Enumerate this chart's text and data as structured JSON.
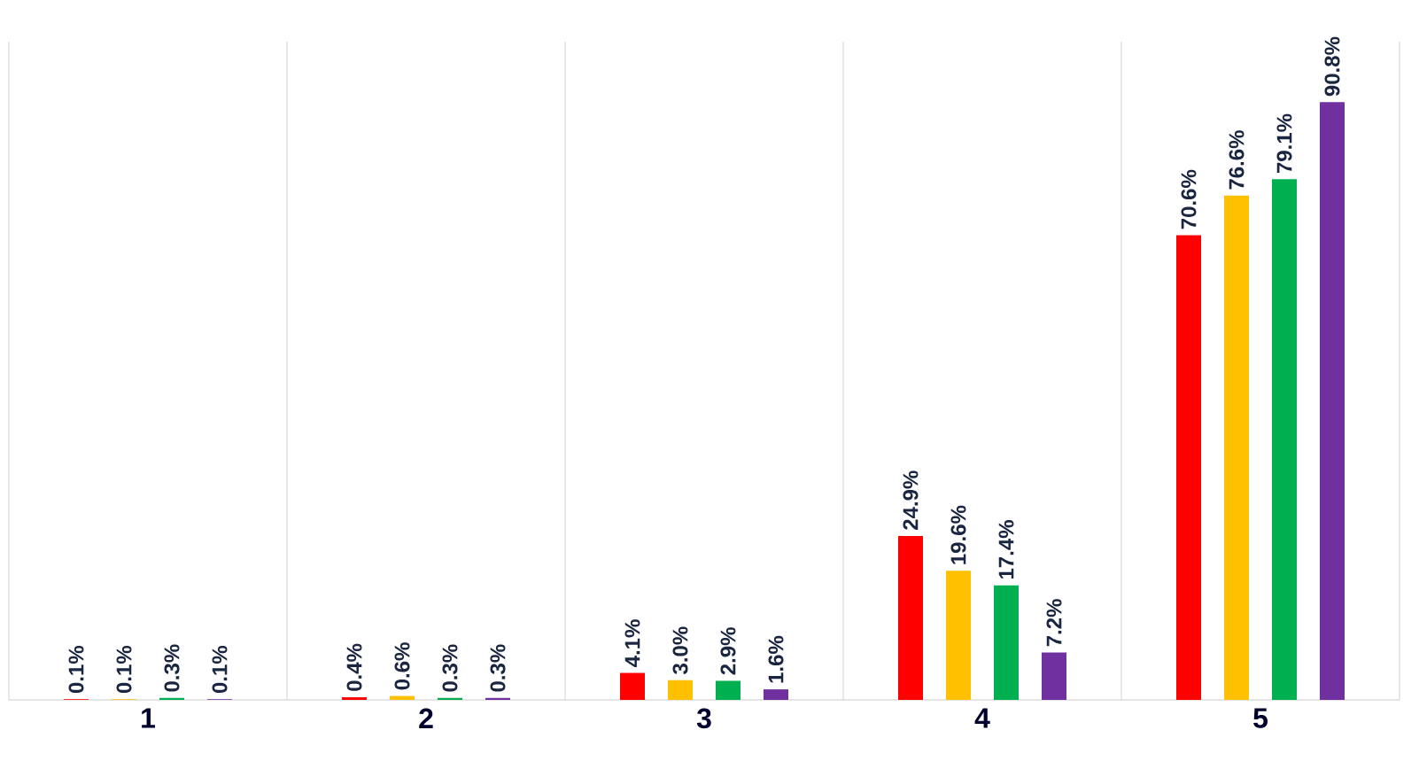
{
  "chart_data": {
    "type": "bar",
    "categories": [
      "1",
      "2",
      "3",
      "4",
      "5"
    ],
    "ylim": [
      0,
      100
    ],
    "tick_labels": "x",
    "grid": "x",
    "series": [
      {
        "color": "#ff0000",
        "values": [
          0.1,
          0.4,
          4.1,
          24.9,
          70.6
        ],
        "value_labels": [
          "0.1%",
          "0.4%",
          "4.1%",
          "24.9%",
          "70.6%"
        ]
      },
      {
        "color": "#ffc000",
        "values": [
          0.1,
          0.6,
          3.0,
          19.6,
          76.6
        ],
        "value_labels": [
          "0.1%",
          "0.6%",
          "3.0%",
          "19.6%",
          "76.6%"
        ]
      },
      {
        "color": "#00b050",
        "values": [
          0.3,
          0.3,
          2.9,
          17.4,
          79.1
        ],
        "value_labels": [
          "0.3%",
          "0.3%",
          "2.9%",
          "17.4%",
          "79.1%"
        ]
      },
      {
        "color": "#7030a0",
        "values": [
          0.1,
          0.3,
          1.6,
          7.2,
          90.8
        ],
        "value_labels": [
          "0.1%",
          "0.3%",
          "1.6%",
          "7.2%",
          "90.8%"
        ]
      }
    ]
  }
}
